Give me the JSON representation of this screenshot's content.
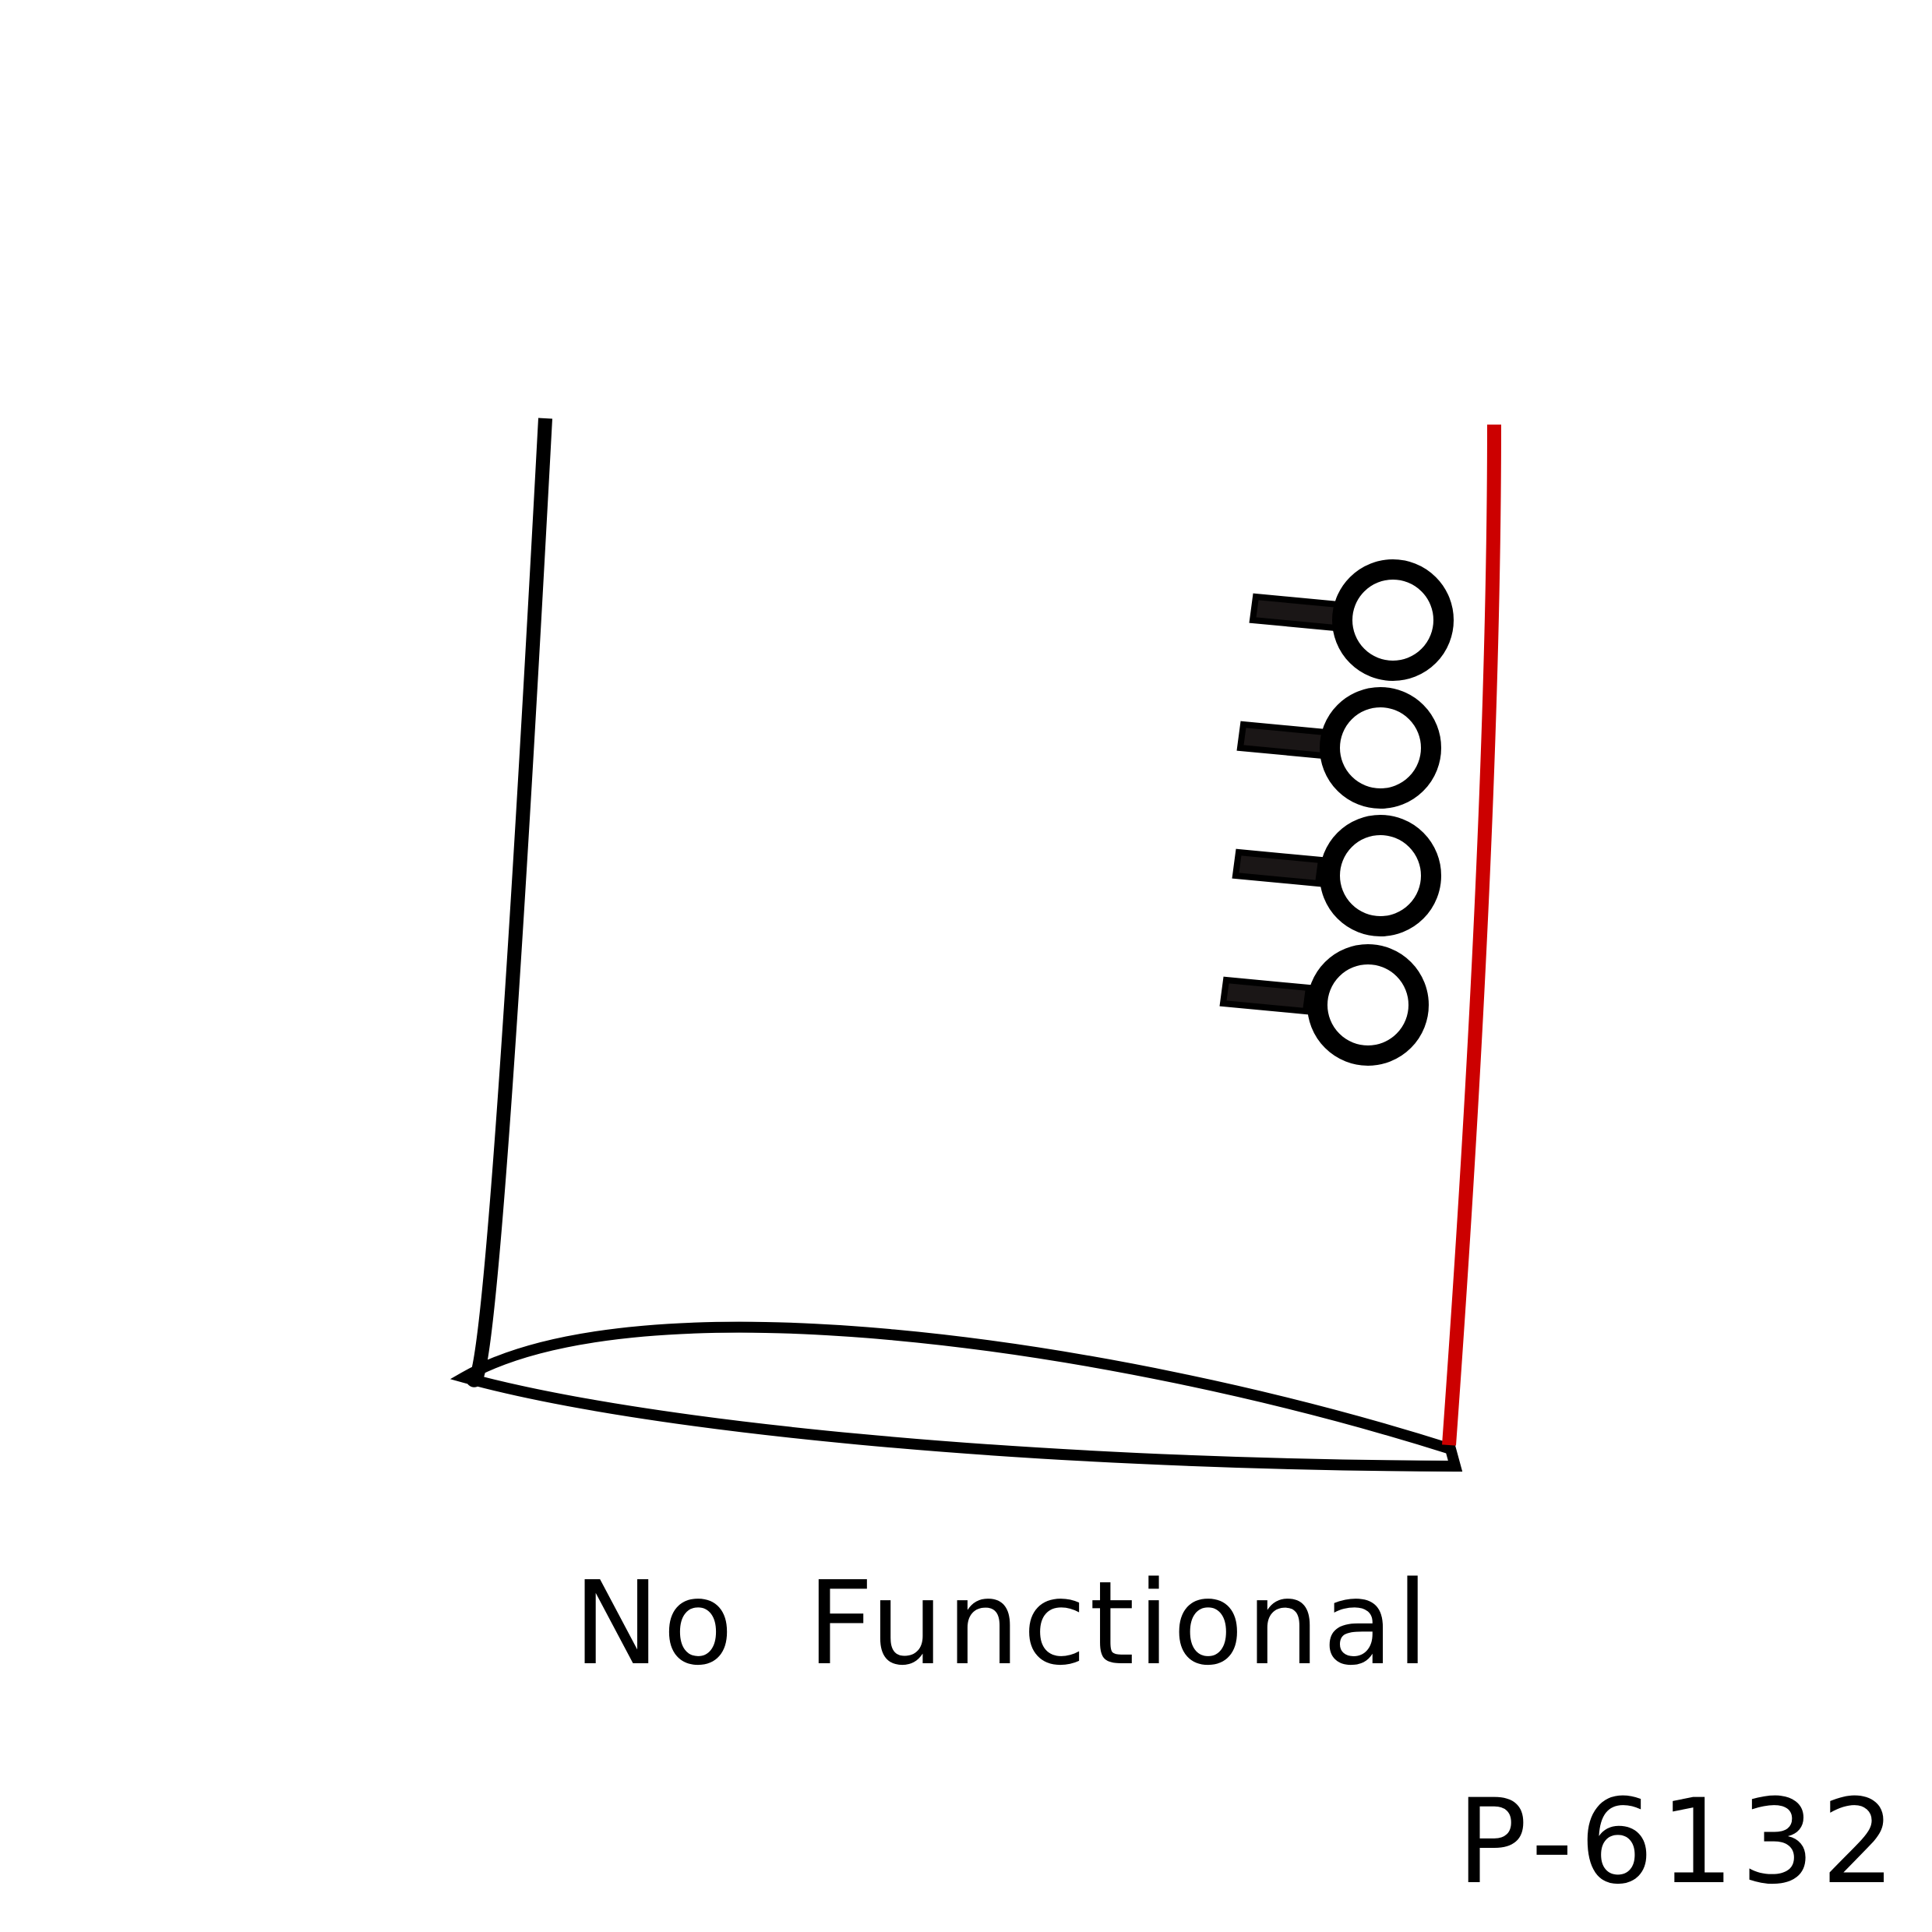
{
  "caption": "No Functional",
  "code": "P-6132",
  "colors": {
    "outline": "#000000",
    "highlight_edge": "#cc0000",
    "ring_fill": "#1a1616"
  },
  "icons": [
    "ring-pin-icon",
    "ring-pin-icon",
    "ring-pin-icon",
    "ring-pin-icon"
  ]
}
